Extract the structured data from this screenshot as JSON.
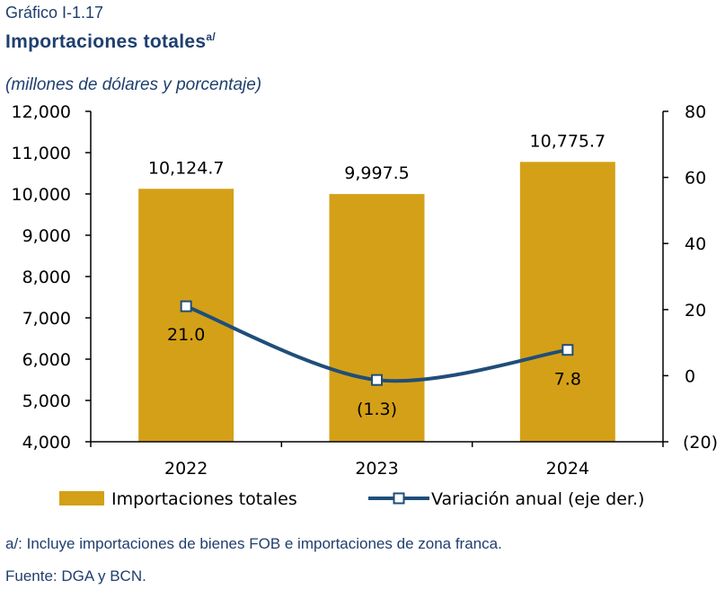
{
  "header": {
    "label": "Gráfico I-1.17",
    "title": "Importaciones totales",
    "title_sup": "a/",
    "subtitle": "(millones de dólares y porcentaje)"
  },
  "chart_data": {
    "type": "bar",
    "categories": [
      "2022",
      "2023",
      "2024"
    ],
    "series": [
      {
        "name": "Importaciones totales",
        "type": "bar",
        "axis": "left",
        "color": "#D4A017",
        "values": [
          10124.7,
          9997.5,
          10775.7
        ],
        "labels": [
          "10,124.7",
          "9,997.5",
          "10,775.7"
        ]
      },
      {
        "name": "Variación anual (eje der.)",
        "type": "line",
        "axis": "right",
        "color": "#1F4E79",
        "marker": "square",
        "values": [
          21.0,
          -1.3,
          7.8
        ],
        "labels": [
          "21.0",
          "(1.3)",
          "7.8"
        ]
      }
    ],
    "y_left": {
      "min": 4000,
      "max": 12000,
      "step": 1000,
      "tick_labels": [
        "4,000",
        "5,000",
        "6,000",
        "7,000",
        "8,000",
        "9,000",
        "10,000",
        "11,000",
        "12,000"
      ]
    },
    "y_right": {
      "min": -20,
      "max": 80,
      "step": 20,
      "tick_labels": [
        "(20)",
        "0",
        "20",
        "40",
        "60",
        "80"
      ]
    },
    "grid": false,
    "legend_position": "bottom"
  },
  "footer": {
    "note": "a/: Incluye importaciones de bienes FOB e importaciones de zona franca.",
    "source": "Fuente: DGA y BCN."
  }
}
